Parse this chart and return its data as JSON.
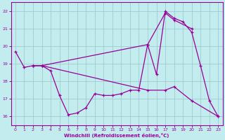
{
  "title": "",
  "xlabel": "Windchill (Refroidissement éolien,°C)",
  "ylabel": "",
  "background_color": "#c2ecee",
  "grid_color": "#a0ccd0",
  "line_color": "#990099",
  "xlim": [
    -0.5,
    23.5
  ],
  "ylim": [
    15.5,
    22.5
  ],
  "xticks": [
    0,
    1,
    2,
    3,
    4,
    5,
    6,
    7,
    8,
    9,
    10,
    11,
    12,
    13,
    14,
    15,
    16,
    17,
    18,
    19,
    20,
    21,
    22,
    23
  ],
  "yticks": [
    16,
    17,
    18,
    19,
    20,
    21,
    22
  ],
  "line1_x": [
    0,
    1,
    2,
    3,
    4,
    5,
    6,
    7,
    8,
    9,
    10,
    11,
    12,
    13,
    14,
    15,
    16,
    17,
    18,
    19,
    20,
    21,
    22,
    23
  ],
  "line1_y": [
    19.7,
    18.8,
    18.9,
    18.9,
    18.6,
    17.2,
    16.1,
    16.2,
    16.5,
    17.3,
    17.2,
    17.2,
    17.3,
    17.5,
    17.5,
    20.1,
    18.4,
    22.0,
    21.6,
    21.4,
    20.8,
    18.9,
    16.9,
    16.0
  ],
  "line2_x": [
    2,
    3,
    15,
    17,
    18,
    20
  ],
  "line2_y": [
    18.9,
    18.9,
    20.1,
    21.9,
    21.5,
    21.0
  ],
  "line3_x": [
    2,
    3,
    15,
    17,
    18,
    20,
    23
  ],
  "line3_y": [
    18.9,
    18.9,
    17.5,
    17.5,
    17.7,
    16.9,
    16.0
  ]
}
